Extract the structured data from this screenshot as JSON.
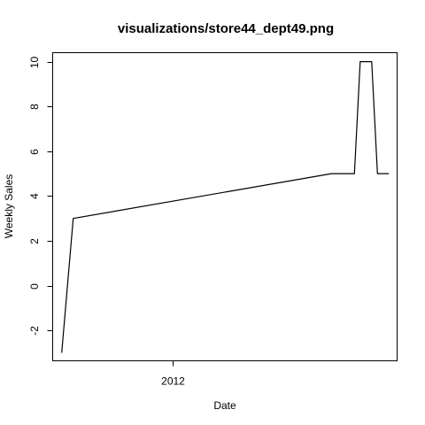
{
  "chart_data": {
    "type": "line",
    "title": "visualizations/store44_dept49.png",
    "xlabel": "Date",
    "ylabel": "Weekly Sales",
    "x_ticks": [
      {
        "date": "2012-01-01",
        "label": "2012"
      }
    ],
    "y_ticks": [
      -2,
      0,
      2,
      4,
      6,
      8,
      10
    ],
    "ylim": [
      -3.36,
      10.4
    ],
    "xlim": [
      "2011-08-08",
      "2012-10-01"
    ],
    "grid": false,
    "series": [
      {
        "points": [
          {
            "x": "2011-08-19",
            "y": -3
          },
          {
            "x": "2011-09-02",
            "y": 3
          },
          {
            "x": "2012-07-13",
            "y": 5
          },
          {
            "x": "2012-08-10",
            "y": 5
          },
          {
            "x": "2012-08-17",
            "y": 10
          },
          {
            "x": "2012-08-31",
            "y": 10
          },
          {
            "x": "2012-09-07",
            "y": 5
          },
          {
            "x": "2012-09-21",
            "y": 5
          }
        ]
      }
    ]
  }
}
